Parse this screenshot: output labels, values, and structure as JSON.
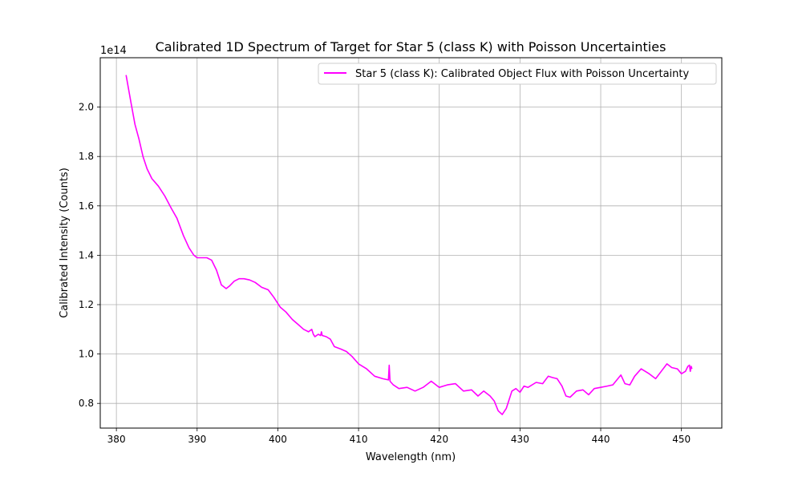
{
  "chart_data": {
    "type": "line",
    "title": "Calibrated 1D Spectrum of Target for Star 5 (class K) with Poisson Uncertainties",
    "xlabel": "Wavelength (nm)",
    "ylabel": "Calibrated Intensity (Counts)",
    "y_offset_label": "1e14",
    "xlim": [
      378,
      455
    ],
    "ylim": [
      0.7,
      2.2
    ],
    "x_ticks": [
      380,
      390,
      400,
      410,
      420,
      430,
      440,
      450
    ],
    "x_tick_labels": [
      "380",
      "390",
      "400",
      "410",
      "420",
      "430",
      "440",
      "450"
    ],
    "y_ticks": [
      0.8,
      1.0,
      1.2,
      1.4,
      1.6,
      1.8,
      2.0
    ],
    "y_tick_labels": [
      "0.8",
      "1.0",
      "1.2",
      "1.4",
      "1.6",
      "1.8",
      "2.0"
    ],
    "grid": true,
    "legend_position": "top-right",
    "series": [
      {
        "name": "Star 5 (class K): Calibrated Object Flux with Poisson Uncertainty",
        "color": "#ff00ff",
        "x": [
          381.2,
          381.8,
          382.3,
          382.8,
          383.3,
          383.8,
          384.4,
          385.2,
          386.0,
          386.8,
          387.5,
          388.3,
          389.0,
          389.6,
          390.0,
          390.5,
          391.2,
          391.8,
          392.4,
          393.0,
          393.6,
          394.0,
          394.6,
          395.2,
          395.8,
          396.5,
          397.2,
          398.0,
          398.8,
          399.5,
          400.3,
          401.0,
          401.8,
          402.5,
          403.2,
          403.8,
          404.2,
          404.4,
          404.6,
          405.0,
          405.3,
          405.4,
          405.5,
          406.0,
          406.5,
          407.0,
          407.8,
          408.5,
          409.2,
          410.0,
          411.0,
          412.0,
          413.0,
          413.7,
          413.8,
          413.9,
          414.3,
          415.0,
          416.0,
          417.0,
          418.0,
          419.0,
          420.0,
          421.0,
          422.0,
          423.0,
          424.0,
          424.8,
          425.5,
          426.3,
          426.8,
          427.3,
          427.8,
          428.3,
          429.0,
          429.5,
          430.0,
          430.5,
          431.0,
          432.0,
          432.8,
          433.5,
          434.0,
          434.6,
          435.2,
          435.7,
          436.2,
          437.0,
          437.8,
          438.5,
          439.2,
          440.0,
          440.8,
          441.5,
          442.0,
          442.5,
          443.0,
          443.6,
          444.2,
          445.0,
          446.0,
          446.8,
          447.5,
          448.2,
          448.8,
          449.5,
          450.0,
          450.5,
          450.8,
          451.0,
          451.1,
          451.2,
          451.3
        ],
        "y": [
          2.13,
          2.02,
          1.93,
          1.87,
          1.8,
          1.75,
          1.71,
          1.68,
          1.64,
          1.59,
          1.55,
          1.48,
          1.43,
          1.4,
          1.39,
          1.39,
          1.39,
          1.38,
          1.34,
          1.28,
          1.265,
          1.275,
          1.295,
          1.305,
          1.305,
          1.3,
          1.29,
          1.27,
          1.26,
          1.23,
          1.19,
          1.17,
          1.14,
          1.12,
          1.1,
          1.09,
          1.1,
          1.08,
          1.07,
          1.08,
          1.075,
          1.09,
          1.075,
          1.07,
          1.06,
          1.03,
          1.02,
          1.01,
          0.99,
          0.96,
          0.94,
          0.91,
          0.9,
          0.895,
          0.955,
          0.89,
          0.875,
          0.86,
          0.865,
          0.85,
          0.865,
          0.89,
          0.865,
          0.875,
          0.88,
          0.85,
          0.855,
          0.83,
          0.85,
          0.83,
          0.81,
          0.77,
          0.755,
          0.78,
          0.85,
          0.86,
          0.845,
          0.87,
          0.865,
          0.885,
          0.88,
          0.91,
          0.905,
          0.9,
          0.87,
          0.83,
          0.825,
          0.85,
          0.855,
          0.835,
          0.86,
          0.865,
          0.87,
          0.875,
          0.895,
          0.915,
          0.88,
          0.875,
          0.91,
          0.94,
          0.92,
          0.9,
          0.93,
          0.96,
          0.945,
          0.94,
          0.92,
          0.93,
          0.95,
          0.955,
          0.93,
          0.95,
          0.94
        ]
      }
    ]
  }
}
